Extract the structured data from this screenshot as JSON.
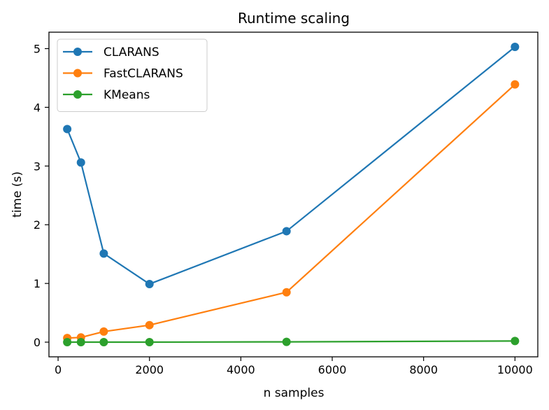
{
  "chart_data": {
    "type": "line",
    "title": "Runtime scaling",
    "xlabel": "n samples",
    "ylabel": "time (s)",
    "xlim": [
      -200,
      10500
    ],
    "ylim": [
      -0.25,
      5.28
    ],
    "xticks": [
      0,
      2000,
      4000,
      6000,
      8000,
      10000
    ],
    "yticks": [
      0,
      1,
      2,
      3,
      4,
      5
    ],
    "grid": false,
    "legend_position": "top-left",
    "x": [
      200,
      500,
      1000,
      2000,
      5000,
      10000
    ],
    "series": [
      {
        "name": "CLARANS",
        "color": "#1f77b4",
        "values": [
          3.63,
          3.06,
          1.51,
          0.99,
          1.89,
          5.03
        ]
      },
      {
        "name": "FastCLARANS",
        "color": "#ff7f0e",
        "values": [
          0.07,
          0.08,
          0.18,
          0.29,
          0.85,
          4.39
        ]
      },
      {
        "name": "KMeans",
        "color": "#2ca02c",
        "values": [
          0.0,
          0.0,
          0.0,
          0.0,
          0.005,
          0.02
        ]
      }
    ]
  }
}
